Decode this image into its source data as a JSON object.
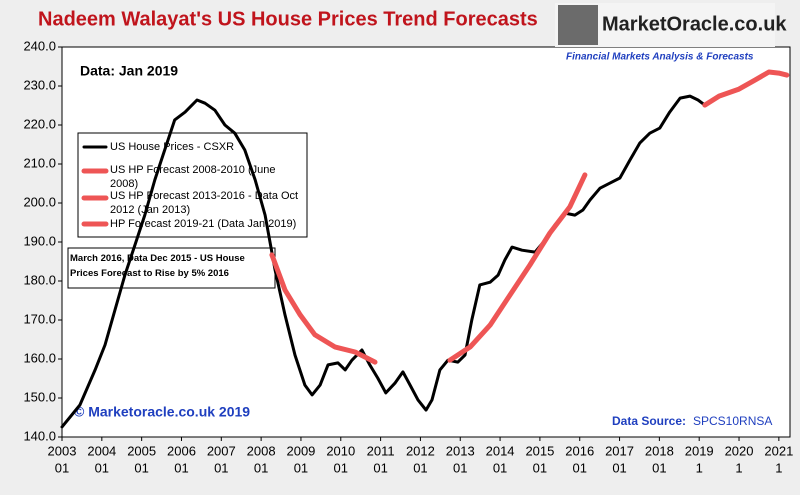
{
  "chart_data": {
    "type": "line",
    "title": "Nadeem Walayat's US House Prices Trend Forecasts",
    "logo": {
      "name": "MarketOracle.co.uk",
      "tagline": "Financial Markets Analysis & Forecasts"
    },
    "annotations": [
      "Data:  Jan 2019",
      "© Marketoracle.co.uk 2019",
      "March 2016, Data Dec 2015 - US House Prices Forecast to Rise by 5% 2016"
    ],
    "source": {
      "label": "Data Source:",
      "value": "SPCS10RNSA"
    },
    "xlim": [
      2003,
      2021.28
    ],
    "ylim": [
      140,
      240
    ],
    "yticks": [
      {
        "value": 140,
        "label": "140.0"
      },
      {
        "value": 150,
        "label": "150.0"
      },
      {
        "value": 160,
        "label": "160.0"
      },
      {
        "value": 170,
        "label": "170.0"
      },
      {
        "value": 180,
        "label": "180.0"
      },
      {
        "value": 190,
        "label": "190.0"
      },
      {
        "value": 200,
        "label": "200.0"
      },
      {
        "value": 210,
        "label": "210.0"
      },
      {
        "value": 220,
        "label": "220.0"
      },
      {
        "value": 230,
        "label": "230.0"
      },
      {
        "value": 240,
        "label": "240.0"
      }
    ],
    "xticks": [
      {
        "value": 2003,
        "label": [
          "2003",
          "01"
        ]
      },
      {
        "value": 2004,
        "label": [
          "2004",
          "01"
        ]
      },
      {
        "value": 2005,
        "label": [
          "2005",
          "01"
        ]
      },
      {
        "value": 2006,
        "label": [
          "2006",
          "01"
        ]
      },
      {
        "value": 2007,
        "label": [
          "2007",
          "01"
        ]
      },
      {
        "value": 2008,
        "label": [
          "2008",
          "01"
        ]
      },
      {
        "value": 2009,
        "label": [
          "2009",
          "01"
        ]
      },
      {
        "value": 2010,
        "label": [
          "2010",
          "01"
        ]
      },
      {
        "value": 2011,
        "label": [
          "2011",
          "01"
        ]
      },
      {
        "value": 2012,
        "label": [
          "2012",
          "01"
        ]
      },
      {
        "value": 2013,
        "label": [
          "2013",
          "01"
        ]
      },
      {
        "value": 2014,
        "label": [
          "2014",
          "01"
        ]
      },
      {
        "value": 2015,
        "label": [
          "2015",
          "01"
        ]
      },
      {
        "value": 2016,
        "label": [
          "2016",
          "01"
        ]
      },
      {
        "value": 2017,
        "label": [
          "2017",
          "01"
        ]
      },
      {
        "value": 2018,
        "label": [
          "2018",
          "01"
        ]
      },
      {
        "value": 2019,
        "label": [
          "2019",
          "1"
        ]
      },
      {
        "value": 2020,
        "label": [
          "2020",
          "1"
        ]
      },
      {
        "value": 2021,
        "label": [
          "2021",
          "1"
        ]
      }
    ],
    "series": [
      {
        "name": "US House Prices - CSXR",
        "color": "#000000",
        "width": 3,
        "x": [
          2003.0,
          2003.45,
          2003.83,
          2004.08,
          2004.33,
          2004.58,
          2004.83,
          2005.08,
          2005.33,
          2005.58,
          2005.83,
          2006.09,
          2006.39,
          2006.59,
          2006.84,
          2007.09,
          2007.34,
          2007.59,
          2007.85,
          2008.1,
          2008.35,
          2008.6,
          2008.85,
          2009.1,
          2009.28,
          2009.48,
          2009.68,
          2009.93,
          2010.11,
          2010.28,
          2010.53,
          2010.73,
          2010.93,
          2011.13,
          2011.36,
          2011.56,
          2011.74,
          2011.94,
          2012.14,
          2012.29,
          2012.49,
          2012.69,
          2012.94,
          2013.12,
          2013.29,
          2013.49,
          2013.75,
          2013.95,
          2014.12,
          2014.3,
          2014.55,
          2014.88,
          2015.13,
          2015.38,
          2015.63,
          2015.88,
          2016.08,
          2016.26,
          2016.51,
          2016.76,
          2017.01,
          2017.26,
          2017.51,
          2017.76,
          2018.01,
          2018.26,
          2018.52,
          2018.77,
          2018.97,
          2019.14
        ],
        "values": [
          142.6,
          148.2,
          157.2,
          163.6,
          172.6,
          181.5,
          189.2,
          196.9,
          205.9,
          213.6,
          221.3,
          223.3,
          226.4,
          225.6,
          223.8,
          220.0,
          217.9,
          213.6,
          205.9,
          196.9,
          182.8,
          171.3,
          161.0,
          153.3,
          150.8,
          153.3,
          158.5,
          159.0,
          157.2,
          159.7,
          162.3,
          158.5,
          155.1,
          151.3,
          153.8,
          156.7,
          153.3,
          149.5,
          146.9,
          149.5,
          157.2,
          159.7,
          159.2,
          161.0,
          170.0,
          179.0,
          179.7,
          181.5,
          185.4,
          188.7,
          187.9,
          187.4,
          190.5,
          194.4,
          197.4,
          196.9,
          198.2,
          200.8,
          203.8,
          205.1,
          206.4,
          211.0,
          215.4,
          217.9,
          219.2,
          223.3,
          226.9,
          227.4,
          226.4,
          225.1
        ]
      },
      {
        "name": "US HP Forecast 2008-2010 (June 2008)",
        "color": "#ee5555",
        "width": 5,
        "x": [
          2008.27,
          2008.6,
          2008.98,
          2009.35,
          2009.85,
          2010.36,
          2010.86
        ],
        "values": [
          186.7,
          177.7,
          171.3,
          166.2,
          163.1,
          161.8,
          159.2
        ]
      },
      {
        "name": "US HP Forecast 2013-2016 - Data Oct 2012 (Jan 2013)",
        "color": "#ee5555",
        "width": 5,
        "x": [
          2012.74,
          2013.25,
          2013.75,
          2014.25,
          2014.75,
          2015.25,
          2015.75,
          2016.13
        ],
        "values": [
          159.7,
          163.1,
          168.7,
          176.4,
          184.1,
          192.3,
          199.0,
          207.2
        ]
      },
      {
        "name": "HP Forecast 2019-21 (Data Jan 2019)",
        "color": "#ee5555",
        "width": 5,
        "x": [
          2019.14,
          2019.5,
          2020.0,
          2020.4,
          2020.75,
          2021.0,
          2021.2
        ],
        "values": [
          225.1,
          227.4,
          229.2,
          231.5,
          233.6,
          233.3,
          232.8
        ]
      }
    ]
  }
}
